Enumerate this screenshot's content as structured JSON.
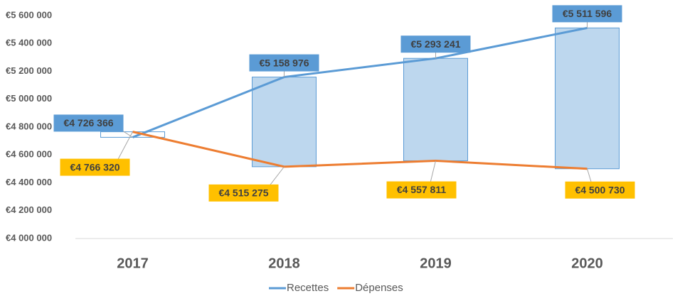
{
  "chart_data": {
    "type": "line",
    "categories": [
      "2017",
      "2018",
      "2019",
      "2020"
    ],
    "series": [
      {
        "name": "Recettes",
        "color": "#5b9bd5",
        "values": [
          4726366,
          5158976,
          5293241,
          5511596
        ],
        "value_labels": [
          "€4 726 366",
          "€5 158 976",
          "€5 293 241",
          "€5 511 596"
        ]
      },
      {
        "name": "Dépenses",
        "color": "#ed7d31",
        "values": [
          4766320,
          4515275,
          4557811,
          4500730
        ],
        "value_labels": [
          "€4 766 320",
          "€4 515 275",
          "€4 557 811",
          "€4 500 730"
        ]
      }
    ],
    "ylim": [
      4000000,
      5600000
    ],
    "yticks": [
      {
        "value": 4000000,
        "label": "€4 000 000"
      },
      {
        "value": 4200000,
        "label": "€4 200 000"
      },
      {
        "value": 4400000,
        "label": "€4 400 000"
      },
      {
        "value": 4600000,
        "label": "€4 600 000"
      },
      {
        "value": 4800000,
        "label": "€4 800 000"
      },
      {
        "value": 5000000,
        "label": "€5 000 000"
      },
      {
        "value": 5200000,
        "label": "€5 200 000"
      },
      {
        "value": 5400000,
        "label": "€5 400 000"
      },
      {
        "value": 5600000,
        "label": "€5 600 000"
      }
    ],
    "grid": false,
    "legend": "bottom",
    "up_down_bars": true
  }
}
